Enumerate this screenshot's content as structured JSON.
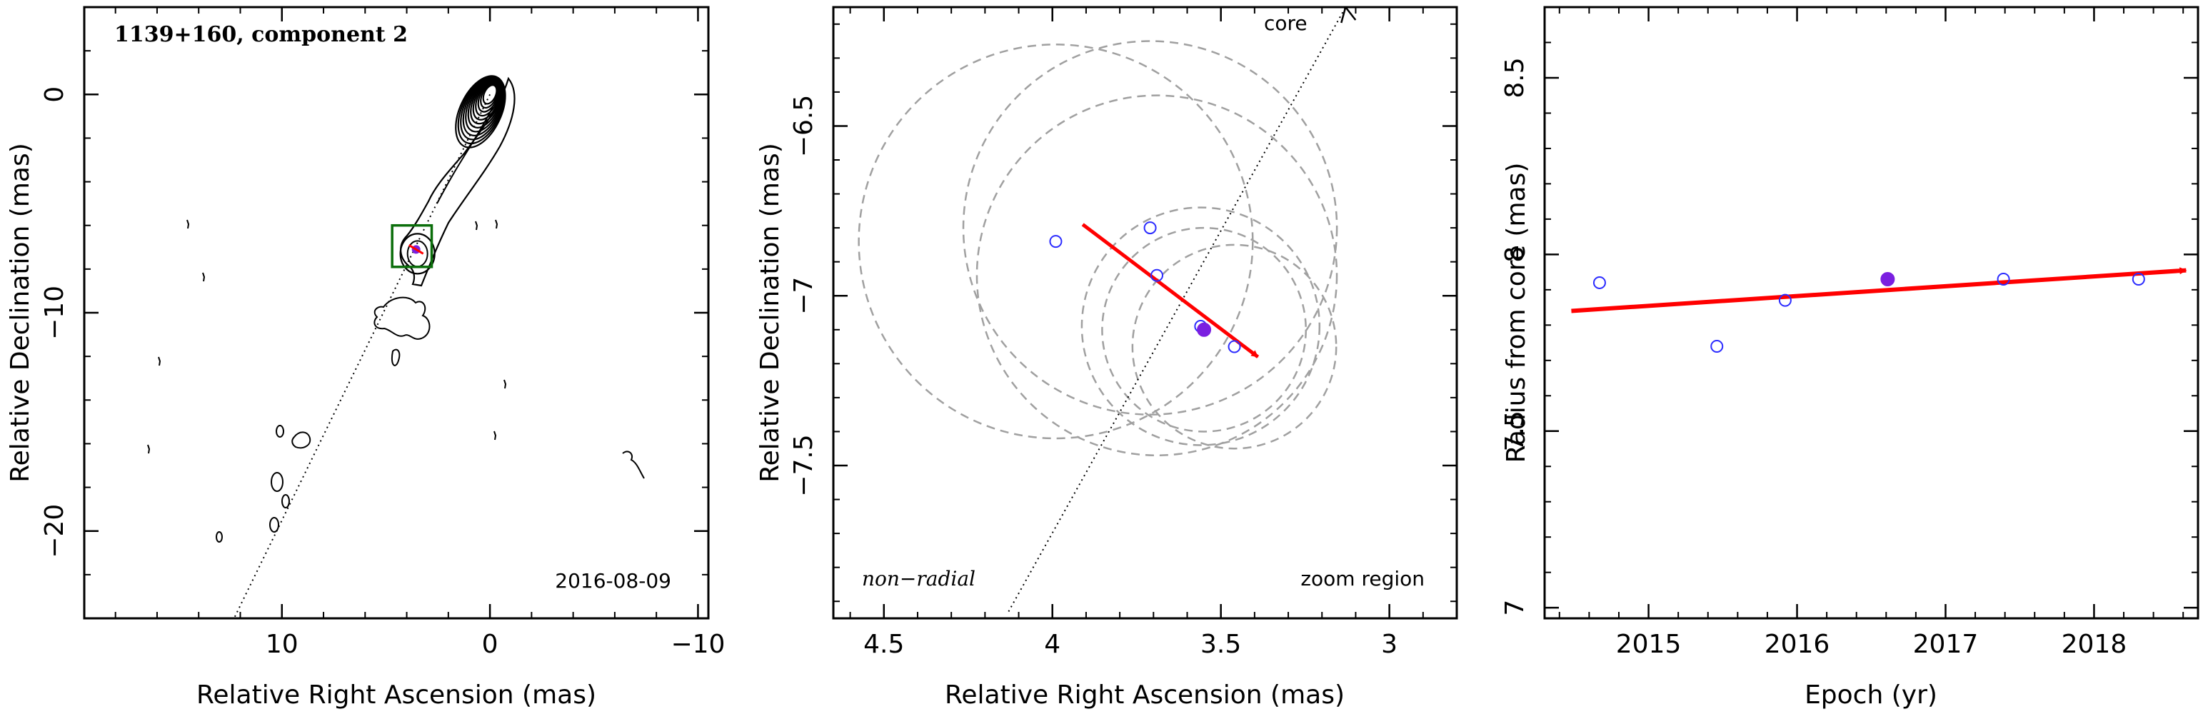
{
  "panels": {
    "left": {
      "title": "1139+160, component 2",
      "date": "2016-08-09",
      "xlabel": "Relative Right Ascension (mas)",
      "ylabel": "Relative Declination (mas)"
    },
    "middle": {
      "core_label": "core",
      "nonradial_label": "non−radial",
      "zoom_label": "zoom region",
      "xlabel": "Relative Right Ascension (mas)",
      "ylabel": "Relative Declination (mas)"
    },
    "right": {
      "xlabel": "Epoch (yr)",
      "ylabel": "Radius from core (mas)"
    }
  },
  "colors": {
    "axis": "#000000",
    "contour": "#000000",
    "zoom_box": "#0b6e0b",
    "points": "#2b2bff",
    "highlight": "#7a1fe0",
    "vector": "#ff0000",
    "circles": "#a0a0a0"
  },
  "chart_data": [
    {
      "type": "contour",
      "title": "1139+160, component 2",
      "xlabel": "Relative Right Ascension (mas)",
      "ylabel": "Relative Declination (mas)",
      "xlim": [
        19.5,
        -10.5
      ],
      "ylim": [
        -24,
        4
      ],
      "x_reversed": true,
      "xticks": [
        10,
        0,
        -10
      ],
      "xtick_labels": [
        "10",
        "0",
        "−10"
      ],
      "yticks": [
        0,
        -10,
        -20
      ],
      "ytick_labels": [
        "0",
        "−10",
        "−20"
      ],
      "core_position": [
        0,
        0
      ],
      "zoom_box": {
        "x": [
          2.8,
          4.7
        ],
        "y": [
          -7.9,
          -6.0
        ]
      },
      "component_position": [
        3.55,
        -7.1
      ],
      "jet_direction_line": {
        "from": [
          0,
          0
        ],
        "to": [
          12.3,
          -24
        ]
      },
      "annotation_date": "2016-08-09"
    },
    {
      "type": "scatter",
      "xlabel": "Relative Right Ascension (mas)",
      "ylabel": "Relative Declination (mas)",
      "xlim": [
        4.65,
        2.8
      ],
      "ylim": [
        -7.95,
        -6.15
      ],
      "x_reversed": true,
      "xticks": [
        4.5,
        4,
        3.5,
        3
      ],
      "xtick_labels": [
        "4.5",
        "4",
        "3.5",
        "3"
      ],
      "yticks": [
        -6.5,
        -7,
        -7.5
      ],
      "ytick_labels": [
        "−6.5",
        "−7",
        "−7.5"
      ],
      "points": [
        {
          "x": 3.99,
          "y": -6.84,
          "highlight": false
        },
        {
          "x": 3.71,
          "y": -6.8,
          "highlight": false
        },
        {
          "x": 3.69,
          "y": -6.94,
          "highlight": false
        },
        {
          "x": 3.56,
          "y": -7.09,
          "highlight": false
        },
        {
          "x": 3.55,
          "y": -7.1,
          "highlight": true
        },
        {
          "x": 3.46,
          "y": -7.15,
          "highlight": false
        }
      ],
      "error_circles": [
        {
          "x": 3.99,
          "y": -6.84,
          "r": 0.58
        },
        {
          "x": 3.71,
          "y": -6.8,
          "r": 0.55
        },
        {
          "x": 3.69,
          "y": -6.94,
          "r": 0.53
        },
        {
          "x": 3.56,
          "y": -7.09,
          "r": 0.35
        },
        {
          "x": 3.55,
          "y": -7.1,
          "r": 0.3
        },
        {
          "x": 3.46,
          "y": -7.15,
          "r": 0.3
        }
      ],
      "motion_vector": {
        "from": [
          3.91,
          -6.79
        ],
        "to": [
          3.39,
          -7.18
        ]
      },
      "core_direction": {
        "from": [
          4.13,
          -7.93
        ],
        "to": [
          3.13,
          -6.15
        ]
      },
      "annotations": [
        "core",
        "non−radial",
        "zoom region"
      ]
    },
    {
      "type": "scatter",
      "xlabel": "Epoch (yr)",
      "ylabel": "Radius from core (mas)",
      "xlim": [
        2014.3,
        2018.7
      ],
      "ylim": [
        6.97,
        8.7
      ],
      "xticks": [
        2015,
        2016,
        2017,
        2018
      ],
      "xtick_labels": [
        "2015",
        "2016",
        "2017",
        "2018"
      ],
      "yticks": [
        7,
        7.5,
        8,
        8.5
      ],
      "ytick_labels": [
        "7",
        "7.5",
        "8",
        "8.5"
      ],
      "points": [
        {
          "x": 2014.67,
          "y": 7.92,
          "highlight": false
        },
        {
          "x": 2015.46,
          "y": 7.74,
          "highlight": false
        },
        {
          "x": 2015.92,
          "y": 7.87,
          "highlight": false
        },
        {
          "x": 2016.61,
          "y": 7.93,
          "highlight": true
        },
        {
          "x": 2017.39,
          "y": 7.93,
          "highlight": false
        },
        {
          "x": 2018.3,
          "y": 7.93,
          "highlight": false
        }
      ],
      "fit_line": {
        "from": [
          2014.48,
          7.84
        ],
        "to": [
          2018.62,
          7.955
        ]
      }
    }
  ]
}
